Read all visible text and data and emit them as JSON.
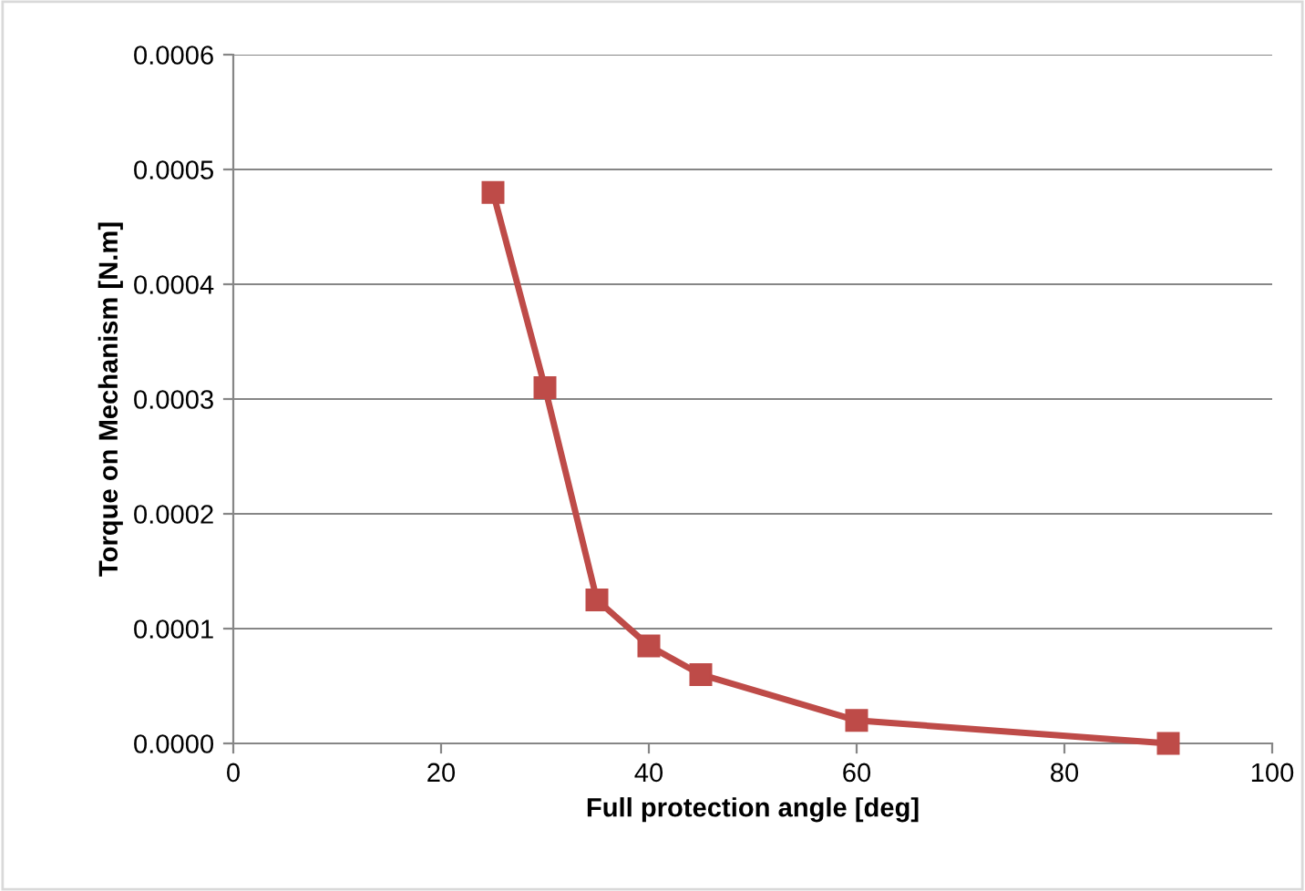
{
  "chart_data": {
    "type": "line",
    "xlabel": "Full protection angle [deg]",
    "ylabel": "Torque on Mechanism [N.m]",
    "x": [
      25,
      30,
      35,
      40,
      45,
      60,
      90
    ],
    "series": [
      {
        "color": "#be4b48",
        "values": [
          0.00048,
          0.00031,
          0.000125,
          8.5e-05,
          6e-05,
          2e-05,
          0.0
        ]
      }
    ],
    "xlim": [
      0,
      100
    ],
    "xticks": [
      0,
      20,
      40,
      60,
      80,
      100
    ],
    "ylim": [
      0,
      0.0006
    ],
    "yticks": [
      {
        "value": 0,
        "label": "0.0000"
      },
      {
        "value": 0.0001,
        "label": "0.0001"
      },
      {
        "value": 0.0002,
        "label": "0.0002"
      },
      {
        "value": 0.0003,
        "label": "0.0003"
      },
      {
        "value": 0.0004,
        "label": "0.0004"
      },
      {
        "value": 0.0005,
        "label": "0.0005"
      },
      {
        "value": 0.0006,
        "label": "0.0006"
      }
    ],
    "grid": "y",
    "marker": "square",
    "line_style": "solid",
    "legend": false
  }
}
